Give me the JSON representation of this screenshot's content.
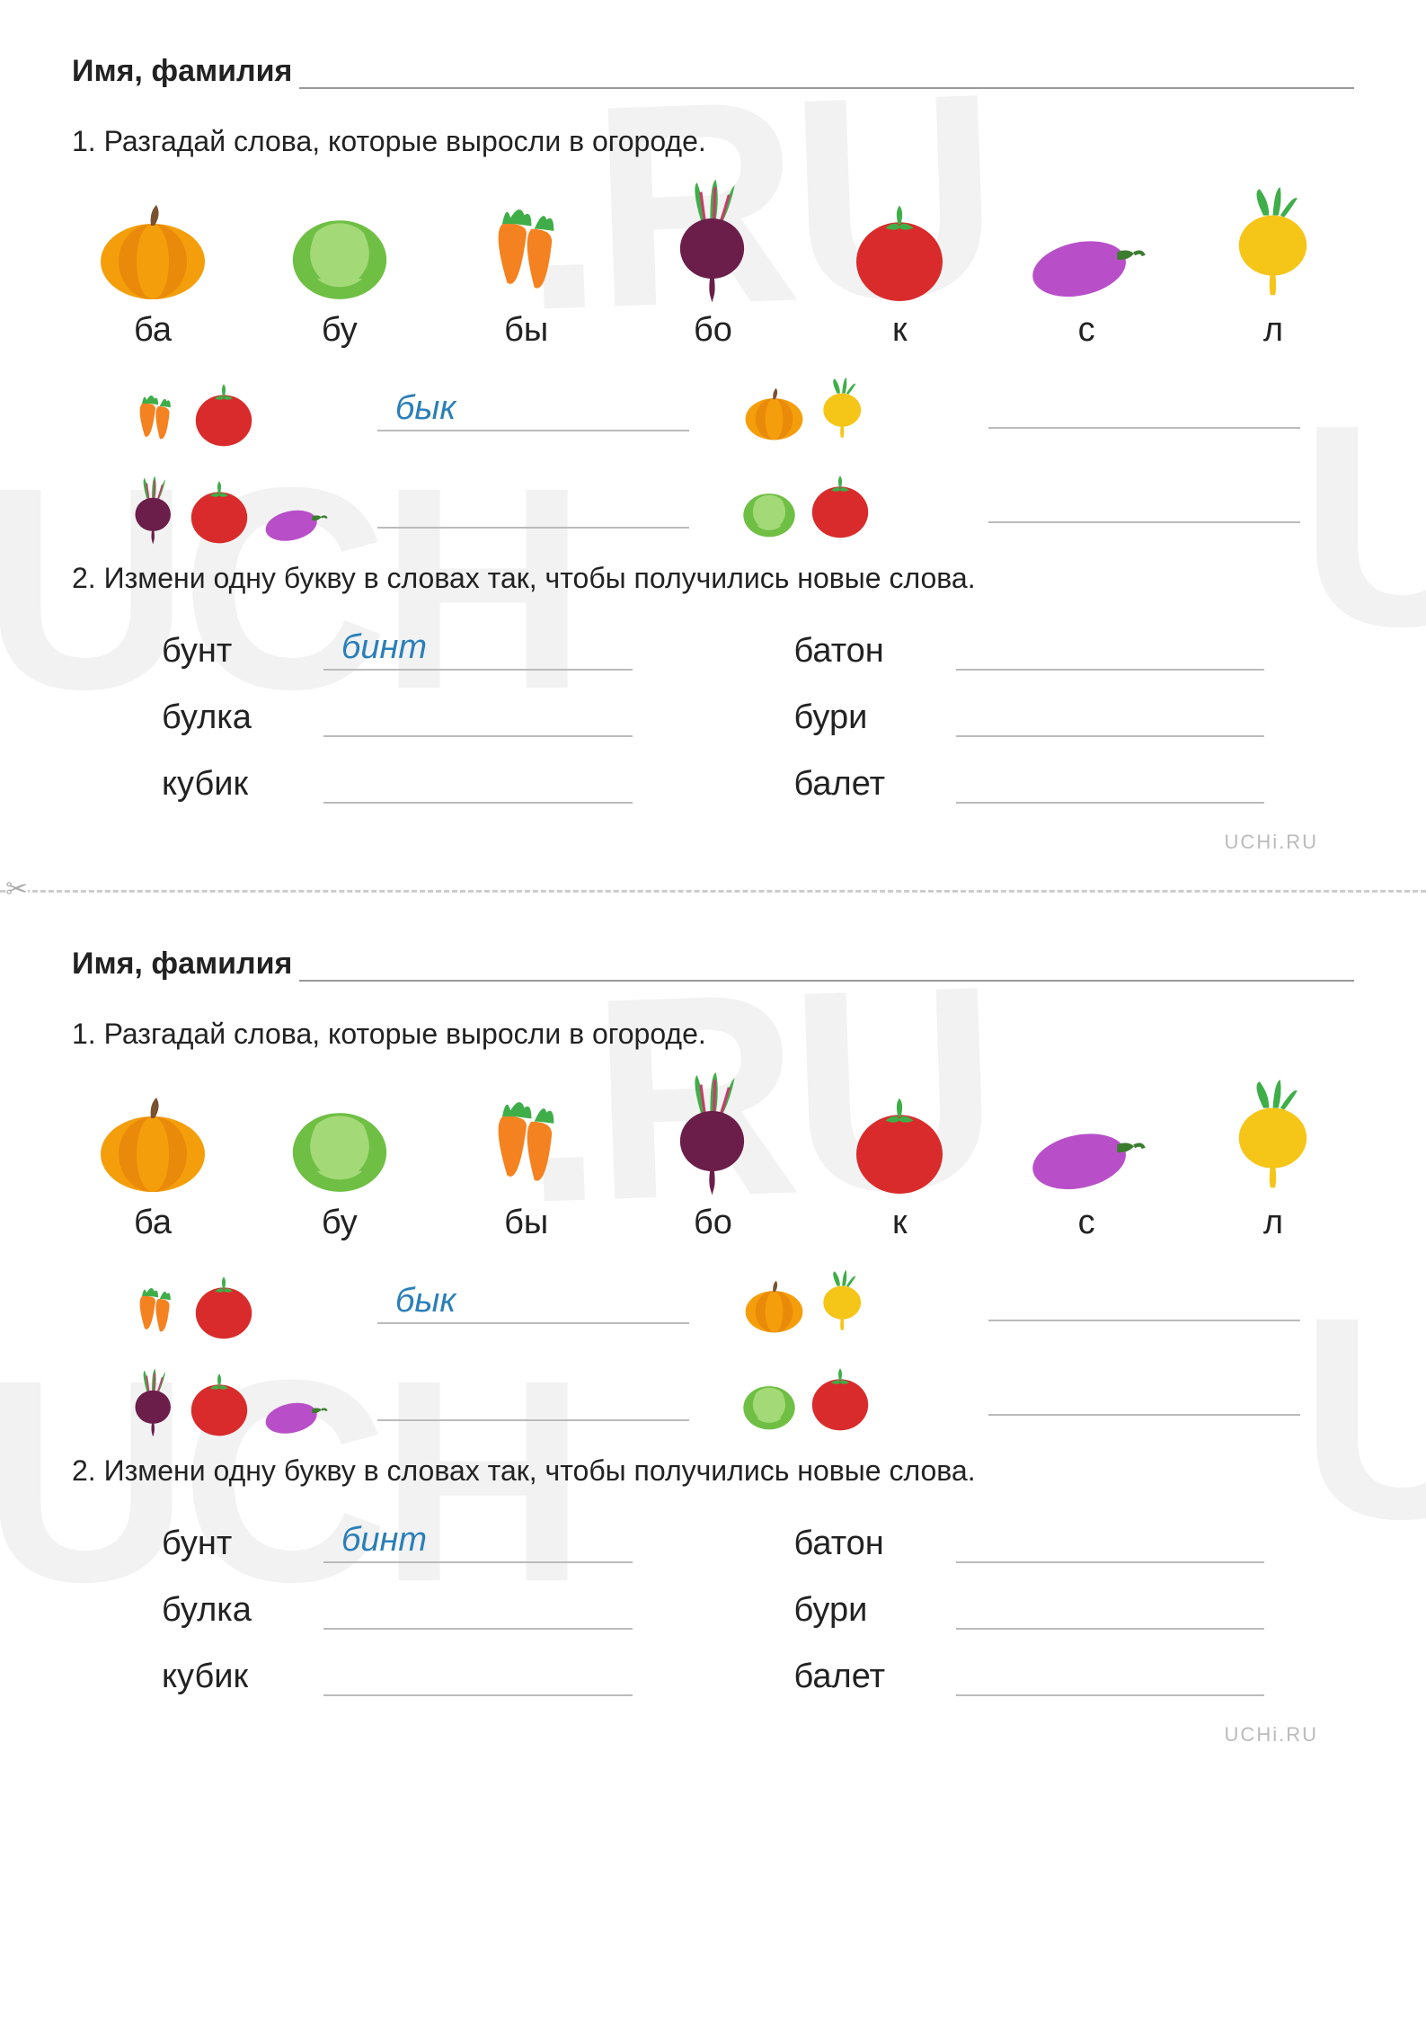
{
  "name_label": "Имя, фамилия",
  "task1": "1. Разгадай слова, которые выросли  в огороде.",
  "task2": "2. Измени одну букву в словах так, чтобы получились новые слова.",
  "vegetables": [
    {
      "icon": "pumpkin",
      "label": "ба"
    },
    {
      "icon": "cabbage",
      "label": "бу"
    },
    {
      "icon": "carrot",
      "label": "бы"
    },
    {
      "icon": "beet",
      "label": "бо"
    },
    {
      "icon": "tomato",
      "label": "к"
    },
    {
      "icon": "eggplant",
      "label": "с"
    },
    {
      "icon": "turnip",
      "label": "л"
    }
  ],
  "answer_rows": [
    {
      "icons": [
        "carrot-small",
        "tomato"
      ],
      "answer": "бык",
      "side": "left"
    },
    {
      "icons": [
        "pumpkin-small",
        "turnip-small"
      ],
      "answer": "",
      "side": "right"
    },
    {
      "icons": [
        "beet-small",
        "tomato",
        "eggplant-small"
      ],
      "answer": "",
      "side": "left"
    },
    {
      "icons": [
        "cabbage-small",
        "tomato"
      ],
      "answer": "",
      "side": "right"
    }
  ],
  "words": [
    {
      "word": "бунт",
      "answer": "бинт"
    },
    {
      "word": "батон",
      "answer": ""
    },
    {
      "word": "булка",
      "answer": ""
    },
    {
      "word": "бури",
      "answer": ""
    },
    {
      "word": "кубик",
      "answer": ""
    },
    {
      "word": "балет",
      "answer": ""
    }
  ],
  "footer": "UCHi.RU",
  "watermark_top": ".RU",
  "watermark_left": "UCH",
  "watermark_right": "U",
  "colors": {
    "pumpkin_body": "#f59e0b",
    "pumpkin_dark": "#ea8a0a",
    "pumpkin_stem": "#7a5230",
    "cabbage_light": "#a3d977",
    "cabbage_dark": "#6fbf44",
    "carrot": "#f58220",
    "carrot_leaf": "#3fae49",
    "beet": "#6b1e4a",
    "beet_leaf": "#3fae49",
    "beet_stem": "#c53d6b",
    "tomato": "#d92b2b",
    "tomato_leaf": "#3fae49",
    "eggplant": "#b84fc9",
    "eggplant_leaf": "#3b7d2e",
    "turnip": "#f5c518",
    "turnip_leaf": "#3fae49",
    "answer_text": "#2a7fb8"
  }
}
